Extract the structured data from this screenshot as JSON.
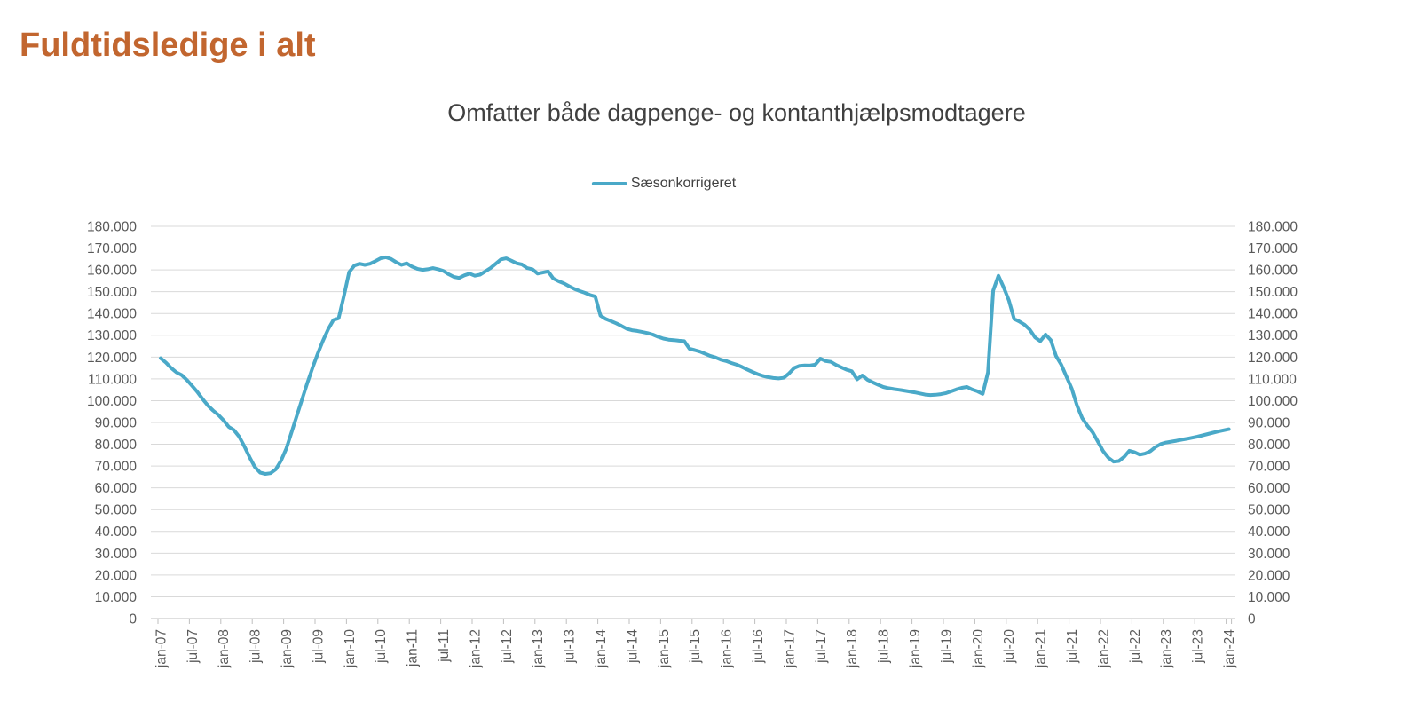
{
  "page": {
    "title": "Fuldtidsledige i alt"
  },
  "chart": {
    "subtitle": "Omfatter både dagpenge- og kontanthjælpsmodtagere",
    "legend": {
      "label": "Sæsonkorrigeret"
    }
  },
  "colors": {
    "title_text": "#C2662F",
    "subtitle_text": "#404040",
    "legend_text": "#404040",
    "tick_text": "#595959",
    "gridline": "#D9D9D9",
    "axis_line": "#BFBFBF",
    "series_line": "#4AA9C8"
  },
  "chart_data": {
    "type": "line",
    "title": "Omfatter både dagpenge- og kontanthjælpsmodtagere",
    "frequency": "monthly",
    "x_start": "jan-07",
    "x_end": "jan-24",
    "x_tick_labels": [
      "jan-07",
      "jul-07",
      "jan-08",
      "jul-08",
      "jan-09",
      "jul-09",
      "jan-10",
      "jul-10",
      "jan-11",
      "jul-11",
      "jan-12",
      "jul-12",
      "jan-13",
      "jul-13",
      "jan-14",
      "jul-14",
      "jan-15",
      "jul-15",
      "jan-16",
      "jul-16",
      "jan-17",
      "jul-17",
      "jan-18",
      "jul-18",
      "jan-19",
      "jul-19",
      "jan-20",
      "jul-20",
      "jan-21",
      "jul-21",
      "jan-22",
      "jul-22",
      "jan-23",
      "jul-23",
      "jan-24"
    ],
    "x_tick_interval_months": 6,
    "ylim": [
      0,
      180000
    ],
    "ytick_step": 10000,
    "y_tick_labels": [
      "180.000",
      "170.000",
      "160.000",
      "150.000",
      "140.000",
      "130.000",
      "120.000",
      "110.000",
      "100.000",
      "90.000",
      "80.000",
      "70.000",
      "60.000",
      "50.000",
      "40.000",
      "30.000",
      "20.000",
      "10.000",
      "0"
    ],
    "y_axis_sides": "both",
    "grid": "horizontal",
    "legend_position": "top-center",
    "series": [
      {
        "name": "Sæsonkorrigeret",
        "values": [
          119500,
          117500,
          115000,
          113000,
          111800,
          109500,
          106800,
          104000,
          100800,
          97800,
          95500,
          93500,
          91000,
          88000,
          86500,
          83500,
          79000,
          74000,
          69500,
          67000,
          66400,
          66700,
          68500,
          72500,
          78000,
          85500,
          93000,
          100500,
          108000,
          115000,
          121500,
          127500,
          132800,
          137000,
          137800,
          148000,
          159000,
          162000,
          162800,
          162300,
          162800,
          164000,
          165300,
          165800,
          165000,
          163500,
          162300,
          163000,
          161500,
          160500,
          160000,
          160300,
          160800,
          160300,
          159500,
          158000,
          156800,
          156300,
          157500,
          158300,
          157300,
          157800,
          159300,
          160800,
          162800,
          164800,
          165300,
          164200,
          163000,
          162500,
          160800,
          160300,
          158300,
          158800,
          159300,
          156000,
          154800,
          153800,
          152500,
          151300,
          150300,
          149500,
          148500,
          147800,
          139000,
          137500,
          136500,
          135500,
          134300,
          133000,
          132300,
          132000,
          131500,
          131000,
          130300,
          129300,
          128500,
          128000,
          127800,
          127500,
          127300,
          123800,
          123200,
          122500,
          121500,
          120500,
          119800,
          118800,
          118200,
          117300,
          116500,
          115500,
          114300,
          113200,
          112200,
          111400,
          110800,
          110400,
          110200,
          110500,
          112500,
          115000,
          116000,
          116200,
          116100,
          116500,
          119300,
          118200,
          117800,
          116400,
          115300,
          114200,
          113500,
          109800,
          111600,
          109600,
          108400,
          107300,
          106300,
          105700,
          105300,
          105000,
          104600,
          104200,
          103800,
          103300,
          102800,
          102600,
          102700,
          103000,
          103500,
          104300,
          105200,
          105900,
          106300,
          105100,
          104300,
          103100,
          113000,
          150500,
          157300,
          152000,
          146000,
          137500,
          136300,
          134800,
          132500,
          129000,
          127300,
          130300,
          127800,
          120500,
          116500,
          111000,
          105500,
          97800,
          92000,
          88500,
          85500,
          81200,
          76800,
          73800,
          72000,
          72300,
          74200,
          77000,
          76300,
          75200,
          75700,
          76800,
          78700,
          80100,
          80800,
          81200,
          81600,
          82100,
          82500,
          83000,
          83500,
          84100,
          84700,
          85300,
          85900,
          86400,
          86900
        ]
      }
    ]
  }
}
